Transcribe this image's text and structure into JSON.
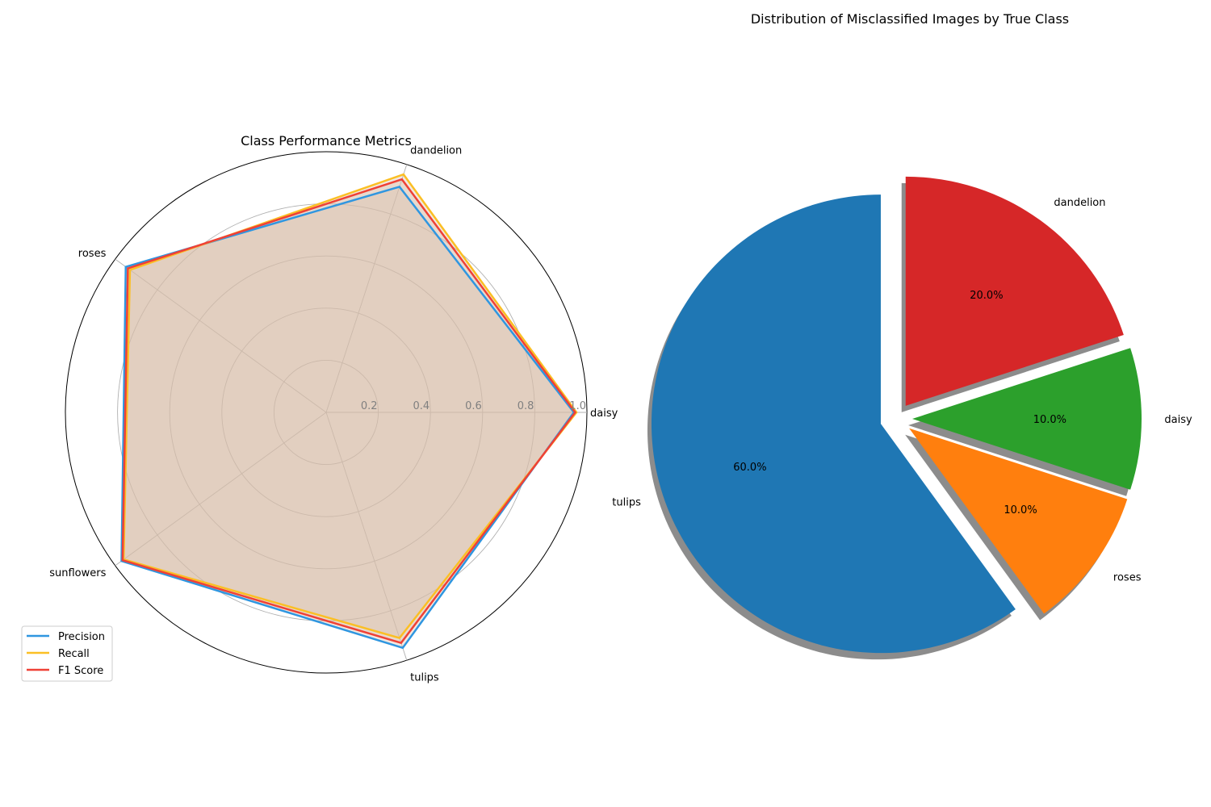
{
  "chart_data": [
    {
      "type": "radar",
      "title": "Class Performance Metrics",
      "categories": [
        "daisy",
        "dandelion",
        "roses",
        "sunflowers",
        "tulips"
      ],
      "rlim": [
        0,
        1.0
      ],
      "rticks": [
        "0.2",
        "0.4",
        "0.6",
        "0.8",
        "1.0"
      ],
      "rtick_values": [
        0.2,
        0.4,
        0.6,
        0.8,
        1.0
      ],
      "grid": true,
      "legend_placement": "lower-left",
      "fill_color": "#d8bca8",
      "series": [
        {
          "name": "Precision",
          "color": "#2f96e0",
          "values": [
            0.95,
            0.91,
            0.95,
            0.97,
            0.95
          ]
        },
        {
          "name": "Recall",
          "color": "#fbbf24",
          "values": [
            0.96,
            0.96,
            0.93,
            0.96,
            0.91
          ]
        },
        {
          "name": "F1 Score",
          "color": "#ef4136",
          "values": [
            0.955,
            0.94,
            0.94,
            0.965,
            0.93
          ]
        }
      ]
    },
    {
      "type": "pie",
      "title": "Distribution of Misclassified Images by True Class",
      "labels": [
        "tulips",
        "roses",
        "daisy",
        "dandelion"
      ],
      "values": [
        60.0,
        10.0,
        10.0,
        20.0
      ],
      "pct_labels": [
        "60.0%",
        "10.0%",
        "10.0%",
        "20.0%"
      ],
      "colors": [
        "#1f77b4",
        "#ff7f0e",
        "#2ca02c",
        "#d62728"
      ],
      "start_angle": 90,
      "shadow": true
    }
  ]
}
